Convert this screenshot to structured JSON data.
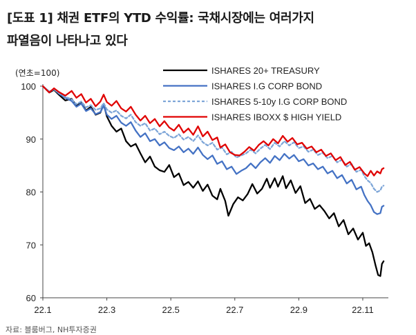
{
  "title": {
    "line1": "[도표 1] 채권 ETF의 YTD 수익률: 국채시장에는 여러가지",
    "line2": "파열음이 나타나고 있다"
  },
  "source": "자료: 블룸버그, NH투자증권",
  "chart_data": {
    "type": "line",
    "unit_label": "(연초=100)",
    "ylim": [
      60,
      100
    ],
    "yticks": [
      60,
      70,
      80,
      90,
      100
    ],
    "xlim": [
      0,
      10.8
    ],
    "xticks": [
      {
        "v": 0,
        "label": "22.1"
      },
      {
        "v": 2,
        "label": "22.3"
      },
      {
        "v": 4,
        "label": "22.5"
      },
      {
        "v": 6,
        "label": "22.7"
      },
      {
        "v": 8,
        "label": "22.9"
      },
      {
        "v": 10,
        "label": "22.11"
      }
    ],
    "grid": false,
    "legend_position": "top-right",
    "series": [
      {
        "name": "ISHARES 20+ TREASURY",
        "color": "#000000",
        "dash": "",
        "points": [
          [
            0,
            100
          ],
          [
            0.2,
            98.8
          ],
          [
            0.35,
            99.3
          ],
          [
            0.5,
            98.4
          ],
          [
            0.7,
            97.3
          ],
          [
            0.9,
            97.6
          ],
          [
            1.05,
            96.3
          ],
          [
            1.2,
            96.9
          ],
          [
            1.35,
            95.4
          ],
          [
            1.5,
            96.1
          ],
          [
            1.65,
            94.6
          ],
          [
            1.8,
            95.0
          ],
          [
            1.9,
            96.6
          ],
          [
            2.0,
            94.3
          ],
          [
            2.15,
            92.5
          ],
          [
            2.3,
            91.4
          ],
          [
            2.45,
            92.0
          ],
          [
            2.6,
            89.6
          ],
          [
            2.75,
            88.6
          ],
          [
            2.9,
            89.1
          ],
          [
            3.05,
            87.3
          ],
          [
            3.2,
            85.6
          ],
          [
            3.35,
            86.7
          ],
          [
            3.5,
            84.8
          ],
          [
            3.65,
            84.1
          ],
          [
            3.8,
            83.8
          ],
          [
            3.95,
            85.1
          ],
          [
            4.1,
            82.8
          ],
          [
            4.25,
            83.5
          ],
          [
            4.4,
            81.3
          ],
          [
            4.55,
            81.9
          ],
          [
            4.7,
            80.8
          ],
          [
            4.85,
            82.0
          ],
          [
            5.0,
            80.2
          ],
          [
            5.15,
            81.4
          ],
          [
            5.3,
            79.3
          ],
          [
            5.45,
            78.6
          ],
          [
            5.55,
            80.6
          ],
          [
            5.7,
            78.3
          ],
          [
            5.8,
            75.5
          ],
          [
            5.95,
            77.7
          ],
          [
            6.1,
            79.0
          ],
          [
            6.25,
            78.4
          ],
          [
            6.4,
            79.6
          ],
          [
            6.55,
            81.5
          ],
          [
            6.7,
            79.7
          ],
          [
            6.85,
            80.6
          ],
          [
            7.0,
            82.5
          ],
          [
            7.1,
            80.8
          ],
          [
            7.25,
            82.6
          ],
          [
            7.35,
            81.0
          ],
          [
            7.5,
            83.0
          ],
          [
            7.6,
            80.7
          ],
          [
            7.75,
            82.2
          ],
          [
            7.9,
            79.8
          ],
          [
            8.05,
            81.1
          ],
          [
            8.2,
            77.9
          ],
          [
            8.35,
            78.7
          ],
          [
            8.5,
            76.8
          ],
          [
            8.65,
            77.5
          ],
          [
            8.8,
            76.4
          ],
          [
            8.95,
            75.0
          ],
          [
            9.1,
            76.0
          ],
          [
            9.25,
            73.5
          ],
          [
            9.4,
            74.7
          ],
          [
            9.55,
            72.0
          ],
          [
            9.7,
            73.1
          ],
          [
            9.85,
            71.0
          ],
          [
            10.0,
            72.3
          ],
          [
            10.1,
            69.8
          ],
          [
            10.2,
            70.3
          ],
          [
            10.3,
            68.6
          ],
          [
            10.4,
            66.1
          ],
          [
            10.48,
            64.3
          ],
          [
            10.55,
            64.1
          ],
          [
            10.6,
            66.4
          ],
          [
            10.65,
            66.9
          ]
        ]
      },
      {
        "name": "ISHARES I.G CORP BOND",
        "color": "#4472C4",
        "dash": "",
        "points": [
          [
            0,
            100
          ],
          [
            0.2,
            98.9
          ],
          [
            0.35,
            99.4
          ],
          [
            0.5,
            98.6
          ],
          [
            0.7,
            97.8
          ],
          [
            0.9,
            97.2
          ],
          [
            1.05,
            96.1
          ],
          [
            1.2,
            96.7
          ],
          [
            1.35,
            95.3
          ],
          [
            1.5,
            95.8
          ],
          [
            1.65,
            94.7
          ],
          [
            1.8,
            95.1
          ],
          [
            1.9,
            96.3
          ],
          [
            2.0,
            94.6
          ],
          [
            2.15,
            93.8
          ],
          [
            2.3,
            94.4
          ],
          [
            2.45,
            93.1
          ],
          [
            2.6,
            92.5
          ],
          [
            2.75,
            93.2
          ],
          [
            2.9,
            91.6
          ],
          [
            3.05,
            90.4
          ],
          [
            3.2,
            91.1
          ],
          [
            3.35,
            89.6
          ],
          [
            3.5,
            90.0
          ],
          [
            3.65,
            88.8
          ],
          [
            3.8,
            89.4
          ],
          [
            3.95,
            88.3
          ],
          [
            4.1,
            87.9
          ],
          [
            4.25,
            88.6
          ],
          [
            4.4,
            87.5
          ],
          [
            4.55,
            88.2
          ],
          [
            4.7,
            87.2
          ],
          [
            4.85,
            88.4
          ],
          [
            5.0,
            87.0
          ],
          [
            5.15,
            86.2
          ],
          [
            5.3,
            86.9
          ],
          [
            5.45,
            85.3
          ],
          [
            5.6,
            85.8
          ],
          [
            5.75,
            84.3
          ],
          [
            5.9,
            84.8
          ],
          [
            6.05,
            83.4
          ],
          [
            6.2,
            84.0
          ],
          [
            6.35,
            84.5
          ],
          [
            6.5,
            85.4
          ],
          [
            6.65,
            84.5
          ],
          [
            6.8,
            85.6
          ],
          [
            6.95,
            86.4
          ],
          [
            7.1,
            85.5
          ],
          [
            7.25,
            86.8
          ],
          [
            7.4,
            86.0
          ],
          [
            7.55,
            87.2
          ],
          [
            7.7,
            86.3
          ],
          [
            7.85,
            87.0
          ],
          [
            8.0,
            85.8
          ],
          [
            8.15,
            86.2
          ],
          [
            8.3,
            85.0
          ],
          [
            8.45,
            85.4
          ],
          [
            8.6,
            84.3
          ],
          [
            8.75,
            84.8
          ],
          [
            8.9,
            83.5
          ],
          [
            9.05,
            84.0
          ],
          [
            9.2,
            82.6
          ],
          [
            9.35,
            83.2
          ],
          [
            9.5,
            81.6
          ],
          [
            9.65,
            82.3
          ],
          [
            9.8,
            80.5
          ],
          [
            9.95,
            81.0
          ],
          [
            10.05,
            79.4
          ],
          [
            10.15,
            78.3
          ],
          [
            10.25,
            77.5
          ],
          [
            10.35,
            76.2
          ],
          [
            10.45,
            75.8
          ],
          [
            10.55,
            76.0
          ],
          [
            10.6,
            77.2
          ],
          [
            10.65,
            77.4
          ]
        ]
      },
      {
        "name": "ISHARES 5-10y I.G CORP BOND",
        "color": "#7EA6D8",
        "dash": "4,3",
        "points": [
          [
            0,
            100
          ],
          [
            0.2,
            99.0
          ],
          [
            0.35,
            99.4
          ],
          [
            0.5,
            98.7
          ],
          [
            0.7,
            98.0
          ],
          [
            0.9,
            97.5
          ],
          [
            1.05,
            96.6
          ],
          [
            1.2,
            97.1
          ],
          [
            1.35,
            96.0
          ],
          [
            1.5,
            96.4
          ],
          [
            1.65,
            95.5
          ],
          [
            1.8,
            95.8
          ],
          [
            1.9,
            96.8
          ],
          [
            2.0,
            95.6
          ],
          [
            2.15,
            95.0
          ],
          [
            2.3,
            95.4
          ],
          [
            2.45,
            94.4
          ],
          [
            2.6,
            93.9
          ],
          [
            2.75,
            94.6
          ],
          [
            2.9,
            93.2
          ],
          [
            3.05,
            92.5
          ],
          [
            3.2,
            93.0
          ],
          [
            3.35,
            91.6
          ],
          [
            3.5,
            92.0
          ],
          [
            3.65,
            90.9
          ],
          [
            3.8,
            91.4
          ],
          [
            3.95,
            90.6
          ],
          [
            4.1,
            90.2
          ],
          [
            4.25,
            90.9
          ],
          [
            4.4,
            89.9
          ],
          [
            4.55,
            90.4
          ],
          [
            4.7,
            89.6
          ],
          [
            4.85,
            90.7
          ],
          [
            5.0,
            89.4
          ],
          [
            5.15,
            88.8
          ],
          [
            5.3,
            89.3
          ],
          [
            5.45,
            88.0
          ],
          [
            5.6,
            88.4
          ],
          [
            5.75,
            87.1
          ],
          [
            5.9,
            87.6
          ],
          [
            6.05,
            86.5
          ],
          [
            6.2,
            86.9
          ],
          [
            6.35,
            87.3
          ],
          [
            6.5,
            88.0
          ],
          [
            6.65,
            87.3
          ],
          [
            6.8,
            88.2
          ],
          [
            6.95,
            88.9
          ],
          [
            7.1,
            88.1
          ],
          [
            7.25,
            89.3
          ],
          [
            7.4,
            88.6
          ],
          [
            7.55,
            89.6
          ],
          [
            7.7,
            88.8
          ],
          [
            7.85,
            89.4
          ],
          [
            8.0,
            88.3
          ],
          [
            8.15,
            88.6
          ],
          [
            8.3,
            87.6
          ],
          [
            8.45,
            88.0
          ],
          [
            8.6,
            87.0
          ],
          [
            8.75,
            87.4
          ],
          [
            8.9,
            86.4
          ],
          [
            9.05,
            86.8
          ],
          [
            9.2,
            85.6
          ],
          [
            9.35,
            86.1
          ],
          [
            9.5,
            84.8
          ],
          [
            9.65,
            85.3
          ],
          [
            9.8,
            83.8
          ],
          [
            9.95,
            84.2
          ],
          [
            10.05,
            83.0
          ],
          [
            10.15,
            82.2
          ],
          [
            10.25,
            81.7
          ],
          [
            10.35,
            80.6
          ],
          [
            10.45,
            80.0
          ],
          [
            10.55,
            80.3
          ],
          [
            10.6,
            81.0
          ],
          [
            10.65,
            81.2
          ]
        ]
      },
      {
        "name": "ISHARES IBOXX $ HIGH YIELD",
        "color": "#E00000",
        "dash": "",
        "points": [
          [
            0,
            100
          ],
          [
            0.2,
            98.8
          ],
          [
            0.35,
            99.6
          ],
          [
            0.5,
            98.9
          ],
          [
            0.7,
            98.2
          ],
          [
            0.9,
            99.1
          ],
          [
            1.05,
            97.8
          ],
          [
            1.2,
            98.5
          ],
          [
            1.35,
            96.9
          ],
          [
            1.5,
            97.6
          ],
          [
            1.65,
            96.2
          ],
          [
            1.8,
            97.1
          ],
          [
            1.9,
            98.4
          ],
          [
            2.0,
            97.0
          ],
          [
            2.15,
            96.3
          ],
          [
            2.3,
            97.2
          ],
          [
            2.45,
            95.8
          ],
          [
            2.6,
            95.2
          ],
          [
            2.75,
            96.1
          ],
          [
            2.9,
            94.6
          ],
          [
            3.05,
            93.5
          ],
          [
            3.2,
            94.4
          ],
          [
            3.35,
            93.0
          ],
          [
            3.5,
            93.8
          ],
          [
            3.65,
            92.4
          ],
          [
            3.8,
            93.4
          ],
          [
            3.95,
            92.2
          ],
          [
            4.1,
            91.6
          ],
          [
            4.25,
            92.7
          ],
          [
            4.4,
            91.2
          ],
          [
            4.55,
            92.0
          ],
          [
            4.7,
            90.8
          ],
          [
            4.85,
            92.4
          ],
          [
            5.0,
            90.5
          ],
          [
            5.15,
            91.4
          ],
          [
            5.3,
            89.8
          ],
          [
            5.45,
            90.3
          ],
          [
            5.55,
            88.4
          ],
          [
            5.7,
            89.0
          ],
          [
            5.85,
            87.5
          ],
          [
            6.0,
            87.0
          ],
          [
            6.15,
            86.9
          ],
          [
            6.3,
            87.6
          ],
          [
            6.45,
            88.5
          ],
          [
            6.6,
            87.8
          ],
          [
            6.75,
            88.9
          ],
          [
            6.9,
            89.6
          ],
          [
            7.05,
            88.8
          ],
          [
            7.2,
            90.0
          ],
          [
            7.35,
            89.2
          ],
          [
            7.5,
            90.6
          ],
          [
            7.65,
            89.5
          ],
          [
            7.8,
            90.2
          ],
          [
            7.95,
            89.0
          ],
          [
            8.1,
            89.3
          ],
          [
            8.25,
            88.2
          ],
          [
            8.4,
            88.6
          ],
          [
            8.55,
            87.5
          ],
          [
            8.7,
            88.0
          ],
          [
            8.85,
            86.8
          ],
          [
            9.0,
            87.3
          ],
          [
            9.15,
            86.0
          ],
          [
            9.3,
            86.6
          ],
          [
            9.45,
            85.1
          ],
          [
            9.6,
            85.7
          ],
          [
            9.75,
            84.2
          ],
          [
            9.9,
            84.7
          ],
          [
            10.05,
            83.5
          ],
          [
            10.15,
            83.0
          ],
          [
            10.25,
            84.0
          ],
          [
            10.35,
            83.1
          ],
          [
            10.45,
            83.9
          ],
          [
            10.55,
            83.5
          ],
          [
            10.6,
            84.3
          ],
          [
            10.65,
            84.5
          ]
        ]
      }
    ]
  }
}
